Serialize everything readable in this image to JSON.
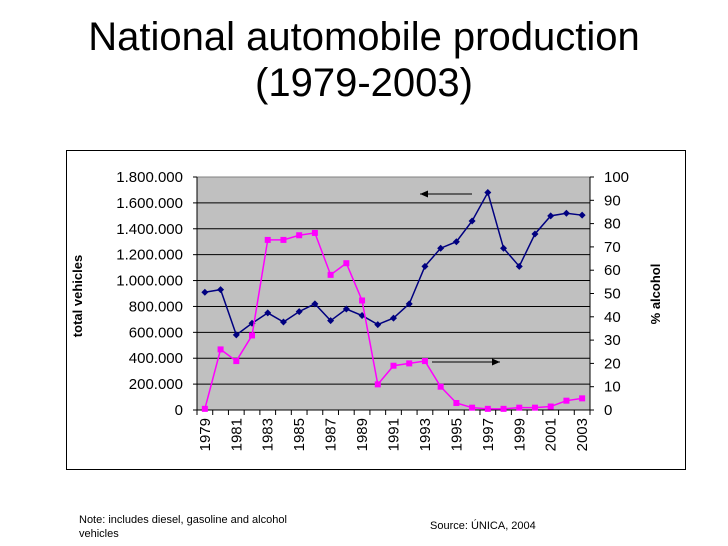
{
  "slide": {
    "title_line1": "National automobile production",
    "title_line2": "(1979-2003)",
    "note": "Note: includes diesel, gasoline and alcohol vehicles",
    "source": "Source: ÚNICA, 2004"
  },
  "chart_data": {
    "type": "line",
    "title": "National automobile production (1979-2003)",
    "x": [
      1979,
      1980,
      1981,
      1982,
      1983,
      1984,
      1985,
      1986,
      1987,
      1988,
      1989,
      1990,
      1991,
      1992,
      1993,
      1994,
      1995,
      1996,
      1997,
      1998,
      1999,
      2000,
      2001,
      2002,
      2003
    ],
    "x_tick_labels": [
      "1979",
      "1981",
      "1983",
      "1985",
      "1987",
      "1989",
      "1991",
      "1993",
      "1995",
      "1997",
      "1999",
      "2001",
      "2003"
    ],
    "ylabel_left": "total vehicles",
    "ylabel_right": "% alcohol",
    "ylim_left": [
      0,
      1800000
    ],
    "ylim_right": [
      0,
      100
    ],
    "y_ticks_left": [
      "0",
      "200.000",
      "400.000",
      "600.000",
      "800.000",
      "1.000.000",
      "1.200.000",
      "1.400.000",
      "1.600.000",
      "1.800.000"
    ],
    "y_ticks_right": [
      "0",
      "10",
      "20",
      "30",
      "40",
      "50",
      "60",
      "70",
      "80",
      "90",
      "100"
    ],
    "grid": true,
    "series": [
      {
        "name": "total vehicles",
        "axis": "left",
        "color": "#000080",
        "marker": "diamond",
        "values": [
          910000,
          930000,
          580000,
          670000,
          750000,
          680000,
          760000,
          820000,
          690000,
          780000,
          730000,
          660000,
          710000,
          820000,
          1110000,
          1250000,
          1300000,
          1460000,
          1680000,
          1250000,
          1110000,
          1360000,
          1500000,
          1520000,
          1505000
        ]
      },
      {
        "name": "% alcohol",
        "axis": "right",
        "color": "#ff00ff",
        "marker": "square",
        "values": [
          0.5,
          26,
          21,
          32,
          73,
          73,
          75,
          76,
          58,
          63,
          47,
          11,
          19,
          20,
          21,
          10,
          3,
          1,
          0.5,
          0.5,
          1,
          1,
          1.5,
          4,
          5
        ]
      }
    ],
    "annotations": [
      {
        "type": "arrow",
        "direction": "left",
        "refers_to": "total vehicles"
      },
      {
        "type": "arrow",
        "direction": "right",
        "refers_to": "% alcohol"
      }
    ],
    "colors": {
      "plot_bg": "#c0c0c0",
      "grid": "#000000"
    }
  }
}
